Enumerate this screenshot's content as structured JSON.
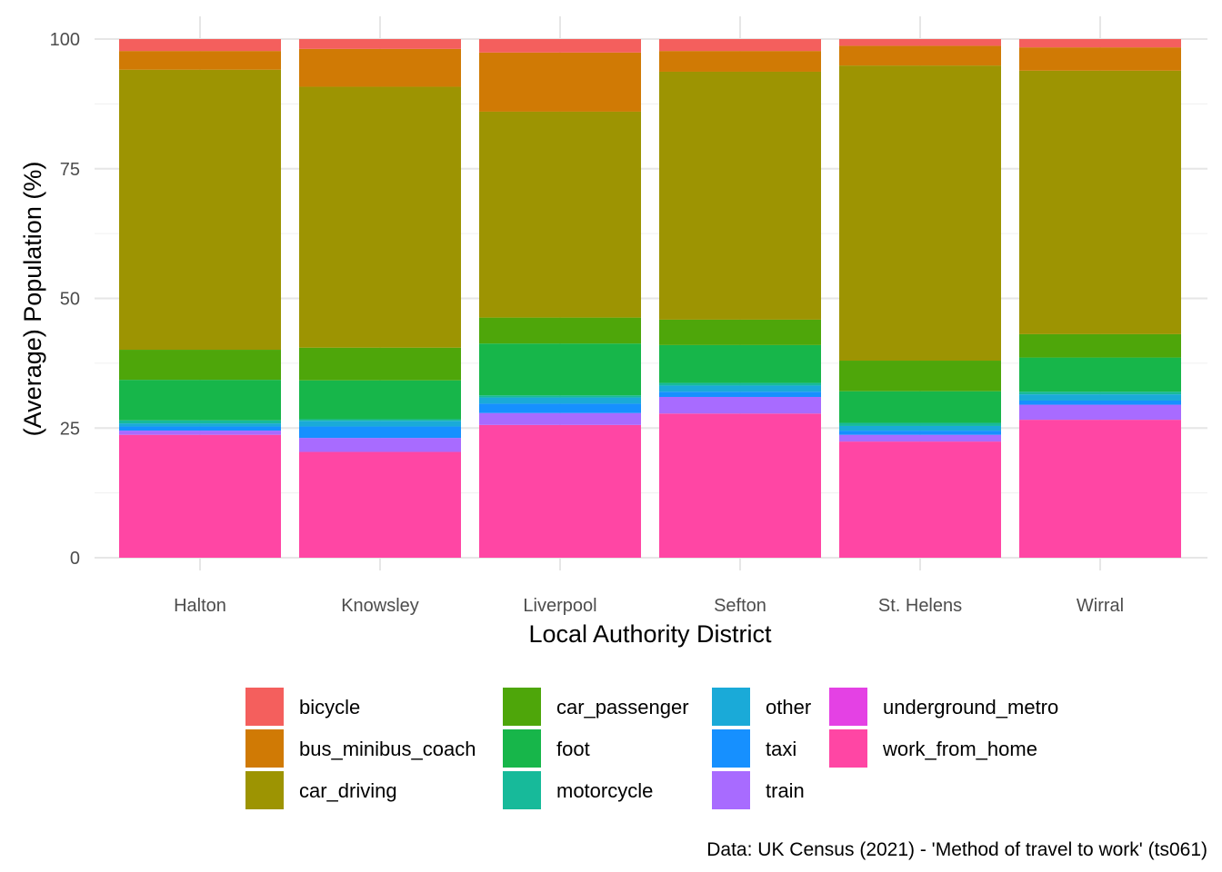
{
  "chart_data": {
    "type": "bar",
    "stacked": true,
    "xlabel": "Local Authority District",
    "ylabel": "(Average) Population (%)",
    "ylim": [
      0,
      100
    ],
    "yticks": [
      "0",
      "25",
      "50",
      "75",
      "100"
    ],
    "grid": true,
    "legend_position": "bottom",
    "caption": "Data: UK Census (2021) - 'Method of travel to work' (ts061)",
    "categories": [
      "Halton",
      "Knowsley",
      "Liverpool",
      "Sefton",
      "St. Helens",
      "Wirral"
    ],
    "series": [
      {
        "name": "work_from_home",
        "color": "#FF46A4",
        "values": [
          23.7,
          20.4,
          25.6,
          27.8,
          22.4,
          26.6
        ]
      },
      {
        "name": "underground_metro",
        "color": "#E441E4",
        "values": [
          0.0,
          0.0,
          0.0,
          0.0,
          0.0,
          0.0
        ]
      },
      {
        "name": "train",
        "color": "#A86BFF",
        "values": [
          0.8,
          2.7,
          2.3,
          3.2,
          1.3,
          2.9
        ]
      },
      {
        "name": "taxi",
        "color": "#1690FF",
        "values": [
          0.8,
          2.2,
          1.8,
          1.0,
          0.8,
          0.8
        ]
      },
      {
        "name": "other",
        "color": "#1AAAD8",
        "values": [
          0.6,
          1.1,
          1.2,
          1.2,
          0.9,
          1.2
        ]
      },
      {
        "name": "motorcycle",
        "color": "#17BA9A",
        "values": [
          0.6,
          0.3,
          0.4,
          0.5,
          0.6,
          0.5
        ]
      },
      {
        "name": "foot",
        "color": "#17B64A",
        "values": [
          7.8,
          7.5,
          10.0,
          7.3,
          6.1,
          6.6
        ]
      },
      {
        "name": "car_passenger",
        "color": "#4EA60A",
        "values": [
          5.8,
          6.3,
          5.0,
          4.9,
          5.9,
          4.5
        ]
      },
      {
        "name": "car_driving",
        "color": "#9D9402",
        "values": [
          54.0,
          50.3,
          39.7,
          47.8,
          56.9,
          50.8
        ]
      },
      {
        "name": "bus_minibus_coach",
        "color": "#D07A05",
        "values": [
          3.6,
          7.3,
          11.4,
          4.0,
          3.8,
          4.5
        ]
      },
      {
        "name": "bicycle",
        "color": "#F45F5D",
        "values": [
          2.3,
          1.9,
          2.6,
          2.3,
          1.3,
          1.6
        ]
      }
    ],
    "legend": [
      {
        "name": "bicycle",
        "color": "#F45F5D"
      },
      {
        "name": "bus_minibus_coach",
        "color": "#D07A05"
      },
      {
        "name": "car_driving",
        "color": "#9D9402"
      },
      {
        "name": "car_passenger",
        "color": "#4EA60A"
      },
      {
        "name": "foot",
        "color": "#17B64A"
      },
      {
        "name": "motorcycle",
        "color": "#17BA9A"
      },
      {
        "name": "other",
        "color": "#1AAAD8"
      },
      {
        "name": "taxi",
        "color": "#1690FF"
      },
      {
        "name": "train",
        "color": "#A86BFF"
      },
      {
        "name": "underground_metro",
        "color": "#E441E4"
      },
      {
        "name": "work_from_home",
        "color": "#FF46A4"
      }
    ]
  }
}
